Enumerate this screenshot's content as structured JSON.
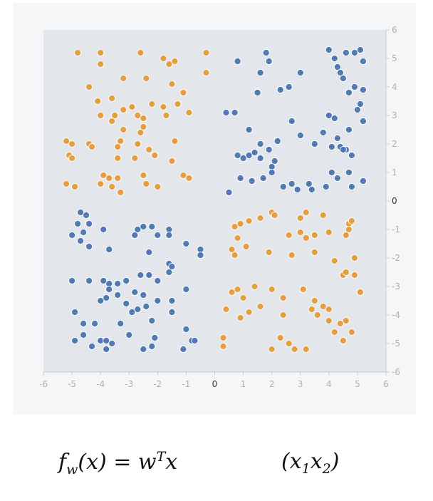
{
  "chart_data": {
    "type": "scatter",
    "title": "",
    "xlabel": "",
    "ylabel": "",
    "xlim": [
      -6,
      6
    ],
    "ylim": [
      -6,
      6
    ],
    "x_ticks": [
      -6,
      -5,
      -4,
      -3,
      -2,
      -1,
      0,
      1,
      2,
      3,
      4,
      5,
      6
    ],
    "y_ticks": [
      6,
      5,
      4,
      3,
      2,
      1,
      0,
      -1,
      -2,
      -3,
      -4,
      -5,
      -6
    ],
    "grid": false,
    "legend": "none",
    "background_color": "#e3e7ec",
    "series": [
      {
        "color": "#e39f45",
        "points": [
          [
            -4.8,
            5.2
          ],
          [
            -4.0,
            5.2
          ],
          [
            -4.0,
            4.8
          ],
          [
            -2.6,
            5.2
          ],
          [
            -1.8,
            5.0
          ],
          [
            -1.6,
            4.8
          ],
          [
            -1.4,
            4.9
          ],
          [
            -0.3,
            5.2
          ],
          [
            -4.4,
            4.0
          ],
          [
            -3.2,
            4.3
          ],
          [
            -2.4,
            4.3
          ],
          [
            -1.5,
            4.1
          ],
          [
            -0.3,
            4.5
          ],
          [
            -1.1,
            3.8
          ],
          [
            -4.1,
            3.5
          ],
          [
            -3.6,
            3.6
          ],
          [
            -4.0,
            3.0
          ],
          [
            -3.5,
            3.0
          ],
          [
            -3.6,
            2.8
          ],
          [
            -3.2,
            3.2
          ],
          [
            -2.9,
            3.3
          ],
          [
            -2.7,
            3.0
          ],
          [
            -2.5,
            2.9
          ],
          [
            -2.2,
            3.4
          ],
          [
            -1.8,
            3.3
          ],
          [
            -1.3,
            3.4
          ],
          [
            -0.9,
            3.1
          ],
          [
            -1.7,
            3.0
          ],
          [
            -2.5,
            2.6
          ],
          [
            -2.6,
            2.4
          ],
          [
            -3.2,
            2.5
          ],
          [
            -3.3,
            2.1
          ],
          [
            -3.4,
            1.9
          ],
          [
            -2.7,
            2.0
          ],
          [
            -2.3,
            1.8
          ],
          [
            -1.4,
            2.1
          ],
          [
            -5.2,
            2.1
          ],
          [
            -5.0,
            2.0
          ],
          [
            -4.4,
            2.0
          ],
          [
            -4.3,
            1.9
          ],
          [
            -5.1,
            1.6
          ],
          [
            -5.0,
            1.5
          ],
          [
            -3.4,
            1.5
          ],
          [
            -2.8,
            1.5
          ],
          [
            -2.1,
            1.6
          ],
          [
            -1.5,
            1.4
          ],
          [
            -3.9,
            0.9
          ],
          [
            -3.7,
            0.8
          ],
          [
            -4.0,
            0.6
          ],
          [
            -3.4,
            0.8
          ],
          [
            -2.5,
            0.9
          ],
          [
            -1.1,
            0.9
          ],
          [
            -0.9,
            0.8
          ],
          [
            -5.2,
            0.6
          ],
          [
            -4.9,
            0.5
          ],
          [
            -3.6,
            0.5
          ],
          [
            -3.3,
            0.3
          ],
          [
            -2.4,
            0.6
          ],
          [
            -2.0,
            0.5
          ],
          [
            0.7,
            -0.9
          ],
          [
            0.9,
            -0.8
          ],
          [
            1.2,
            -0.7
          ],
          [
            1.6,
            -0.6
          ],
          [
            2.0,
            -0.4
          ],
          [
            2.1,
            -0.5
          ],
          [
            3.0,
            -0.6
          ],
          [
            3.2,
            -0.4
          ],
          [
            3.8,
            -0.5
          ],
          [
            4.7,
            -0.8
          ],
          [
            4.8,
            -0.7
          ],
          [
            4.7,
            -1.0
          ],
          [
            0.8,
            -1.3
          ],
          [
            0.6,
            -1.7
          ],
          [
            0.7,
            -1.9
          ],
          [
            1.1,
            -1.6
          ],
          [
            1.9,
            -1.8
          ],
          [
            2.6,
            -1.2
          ],
          [
            3.2,
            -1.3
          ],
          [
            3.0,
            -1.1
          ],
          [
            3.5,
            -1.2
          ],
          [
            4.0,
            -1.1
          ],
          [
            4.6,
            -1.2
          ],
          [
            2.7,
            -1.9
          ],
          [
            3.5,
            -1.8
          ],
          [
            4.2,
            -2.1
          ],
          [
            4.9,
            -2.0
          ],
          [
            0.6,
            -3.2
          ],
          [
            0.8,
            -3.1
          ],
          [
            1.0,
            -3.4
          ],
          [
            1.4,
            -3.0
          ],
          [
            2.0,
            -3.1
          ],
          [
            2.4,
            -3.4
          ],
          [
            3.1,
            -3.1
          ],
          [
            3.5,
            -3.5
          ],
          [
            3.8,
            -3.7
          ],
          [
            4.0,
            -3.8
          ],
          [
            4.5,
            -2.6
          ],
          [
            4.6,
            -2.5
          ],
          [
            4.9,
            -2.6
          ],
          [
            5.1,
            -3.2
          ],
          [
            0.4,
            -3.8
          ],
          [
            0.9,
            -4.1
          ],
          [
            1.2,
            -3.9
          ],
          [
            1.6,
            -3.7
          ],
          [
            2.4,
            -4.0
          ],
          [
            3.4,
            -3.8
          ],
          [
            3.6,
            -4.0
          ],
          [
            4.0,
            -4.2
          ],
          [
            4.4,
            -4.3
          ],
          [
            4.6,
            -4.2
          ],
          [
            4.8,
            -4.6
          ],
          [
            4.5,
            -4.9
          ],
          [
            4.2,
            -4.6
          ],
          [
            0.3,
            -4.8
          ],
          [
            0.3,
            -5.1
          ],
          [
            2.0,
            -5.2
          ],
          [
            2.3,
            -4.8
          ],
          [
            2.6,
            -5.0
          ],
          [
            2.8,
            -5.2
          ],
          [
            3.2,
            -5.2
          ]
        ]
      },
      {
        "color": "#5279b0",
        "points": [
          [
            0.8,
            4.9
          ],
          [
            1.8,
            5.2
          ],
          [
            1.9,
            4.9
          ],
          [
            1.6,
            4.5
          ],
          [
            2.3,
            3.9
          ],
          [
            2.6,
            4.0
          ],
          [
            3.0,
            4.5
          ],
          [
            1.5,
            3.8
          ],
          [
            4.0,
            5.3
          ],
          [
            4.2,
            5.0
          ],
          [
            4.3,
            4.7
          ],
          [
            4.4,
            4.5
          ],
          [
            4.6,
            5.2
          ],
          [
            4.9,
            5.2
          ],
          [
            5.1,
            5.3
          ],
          [
            5.2,
            4.9
          ],
          [
            4.5,
            4.3
          ],
          [
            4.7,
            3.8
          ],
          [
            4.9,
            4.0
          ],
          [
            5.2,
            3.9
          ],
          [
            5.1,
            3.4
          ],
          [
            5.0,
            3.2
          ],
          [
            5.2,
            2.8
          ],
          [
            4.7,
            2.5
          ],
          [
            4.0,
            3.0
          ],
          [
            4.2,
            2.9
          ],
          [
            3.8,
            2.4
          ],
          [
            4.3,
            2.2
          ],
          [
            4.4,
            1.9
          ],
          [
            4.6,
            1.8
          ],
          [
            4.5,
            1.8
          ],
          [
            4.8,
            1.6
          ],
          [
            4.1,
            1.9
          ],
          [
            3.5,
            2.0
          ],
          [
            3.0,
            2.3
          ],
          [
            2.7,
            2.8
          ],
          [
            0.4,
            3.1
          ],
          [
            0.7,
            3.1
          ],
          [
            1.2,
            2.5
          ],
          [
            1.6,
            2.0
          ],
          [
            2.2,
            2.1
          ],
          [
            1.9,
            1.8
          ],
          [
            1.4,
            1.7
          ],
          [
            1.2,
            1.6
          ],
          [
            1.0,
            1.5
          ],
          [
            0.8,
            1.6
          ],
          [
            1.6,
            1.5
          ],
          [
            2.0,
            1.2
          ],
          [
            2.0,
            1.0
          ],
          [
            2.4,
            0.5
          ],
          [
            2.7,
            0.6
          ],
          [
            2.9,
            0.4
          ],
          [
            3.3,
            0.6
          ],
          [
            3.4,
            0.4
          ],
          [
            3.9,
            0.5
          ],
          [
            4.3,
            0.8
          ],
          [
            4.1,
            1.0
          ],
          [
            4.7,
            1.0
          ],
          [
            4.8,
            0.5
          ],
          [
            5.2,
            0.7
          ],
          [
            0.5,
            0.3
          ],
          [
            0.9,
            0.8
          ],
          [
            1.3,
            0.7
          ],
          [
            1.7,
            0.8
          ],
          [
            2.1,
            1.4
          ],
          [
            -4.7,
            -0.4
          ],
          [
            -4.5,
            -0.5
          ],
          [
            -4.4,
            -0.8
          ],
          [
            -4.8,
            -0.8
          ],
          [
            -4.6,
            -1.1
          ],
          [
            -5.0,
            -1.2
          ],
          [
            -4.7,
            -1.4
          ],
          [
            -4.4,
            -1.6
          ],
          [
            -3.9,
            -1.0
          ],
          [
            -3.7,
            -1.7
          ],
          [
            -2.8,
            -1.2
          ],
          [
            -2.7,
            -1.0
          ],
          [
            -2.5,
            -0.9
          ],
          [
            -2.2,
            -0.9
          ],
          [
            -2.0,
            -1.2
          ],
          [
            -1.6,
            -1.0
          ],
          [
            -1.6,
            -1.2
          ],
          [
            -1.0,
            -1.5
          ],
          [
            -0.5,
            -1.7
          ],
          [
            -0.5,
            -1.9
          ],
          [
            -2.3,
            -1.8
          ],
          [
            -1.6,
            -2.2
          ],
          [
            -1.5,
            -2.3
          ],
          [
            -1.6,
            -2.5
          ],
          [
            -2.6,
            -2.6
          ],
          [
            -2.3,
            -2.6
          ],
          [
            -2.0,
            -2.8
          ],
          [
            -3.1,
            -2.8
          ],
          [
            -3.4,
            -2.9
          ],
          [
            -3.7,
            -2.9
          ],
          [
            -3.9,
            -2.8
          ],
          [
            -4.4,
            -2.8
          ],
          [
            -5.0,
            -2.8
          ],
          [
            -3.7,
            -3.1
          ],
          [
            -3.4,
            -3.3
          ],
          [
            -2.8,
            -3.2
          ],
          [
            -2.5,
            -3.3
          ],
          [
            -3.1,
            -3.6
          ],
          [
            -3.8,
            -3.4
          ],
          [
            -4.0,
            -3.5
          ],
          [
            -2.9,
            -3.9
          ],
          [
            -2.7,
            -3.8
          ],
          [
            -2.4,
            -3.7
          ],
          [
            -2.0,
            -3.5
          ],
          [
            -1.5,
            -3.5
          ],
          [
            -1.0,
            -3.1
          ],
          [
            -1.5,
            -3.9
          ],
          [
            -4.9,
            -3.9
          ],
          [
            -4.6,
            -4.3
          ],
          [
            -4.2,
            -4.3
          ],
          [
            -3.3,
            -4.3
          ],
          [
            -4.6,
            -4.7
          ],
          [
            -4.3,
            -5.1
          ],
          [
            -4.0,
            -4.9
          ],
          [
            -3.8,
            -4.9
          ],
          [
            -3.6,
            -5.0
          ],
          [
            -3.8,
            -5.2
          ],
          [
            -3.0,
            -4.7
          ],
          [
            -2.1,
            -4.8
          ],
          [
            -2.2,
            -5.1
          ],
          [
            -2.5,
            -5.2
          ],
          [
            -1.0,
            -4.5
          ],
          [
            -0.8,
            -4.9
          ],
          [
            -0.7,
            -4.9
          ],
          [
            -1.1,
            -5.2
          ],
          [
            -4.9,
            -4.9
          ],
          [
            -2.2,
            -4.2
          ]
        ]
      }
    ]
  },
  "formula": {
    "left": {
      "base": "f",
      "sub": "w",
      "rest": "(x) = w",
      "sup": "T",
      "end": "x"
    },
    "right": {
      "open": "(x",
      "sub1": "1",
      "mid": "x",
      "sub2": "2",
      "close": ")"
    }
  }
}
